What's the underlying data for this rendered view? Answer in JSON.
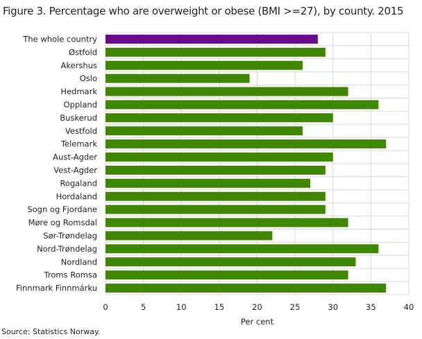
{
  "chart_data": {
    "type": "bar",
    "orientation": "horizontal",
    "title": "Figure 3. Percentage who are overweight or obese (BMI >=27), by county. 2015",
    "xlabel": "Per cent",
    "ylabel": "",
    "xlim": [
      0,
      40
    ],
    "ticks": [
      "0",
      "5",
      "10",
      "15",
      "20",
      "25",
      "30",
      "35",
      "40"
    ],
    "grid": true,
    "categories": [
      "The whole country",
      "Østfold",
      "Akershus",
      "Oslo",
      "Hedmark",
      "Oppland",
      "Buskerud",
      "Vestfold",
      "Telemark",
      "Aust-Agder",
      "Vest-Agder",
      "Rogaland",
      "Hordaland",
      "Sogn og Fjordane",
      "Møre og Romsdal",
      "Sør-Trøndelag",
      "Nord-Trøndelag",
      "Nordland",
      "Troms Romsa",
      "Finnmark Finnmárku"
    ],
    "values": [
      28,
      29,
      26,
      19,
      32,
      36,
      30,
      26,
      37,
      30,
      29,
      27,
      29,
      29,
      32,
      22,
      36,
      33,
      32,
      37
    ],
    "colors": {
      "highlight": "#690a8a",
      "default": "#3f8602",
      "grid": "#d8d8d8"
    },
    "source": "Source: Statistics Norway."
  }
}
